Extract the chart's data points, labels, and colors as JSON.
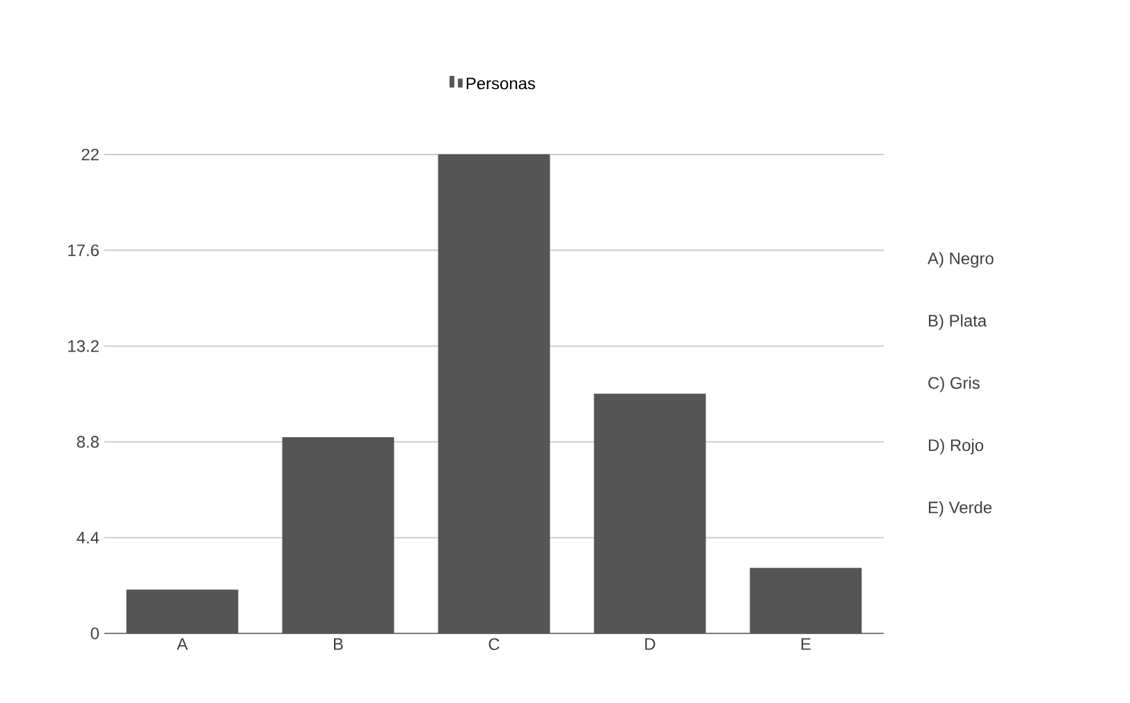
{
  "chart_data": {
    "type": "bar",
    "categories": [
      "A",
      "B",
      "C",
      "D",
      "E"
    ],
    "series": [
      {
        "name": "Personas",
        "color": "#555555",
        "values": [
          2,
          9,
          22,
          11,
          3
        ]
      }
    ],
    "ylim": [
      0,
      22
    ],
    "yticks": [
      0,
      4.4,
      8.8,
      13.2,
      17.6,
      22
    ],
    "grid": "y",
    "legend": "top",
    "annotations": [
      "A) Negro",
      "B) Plata",
      "C) Gris",
      "D) Rojo",
      "E) Verde"
    ]
  }
}
